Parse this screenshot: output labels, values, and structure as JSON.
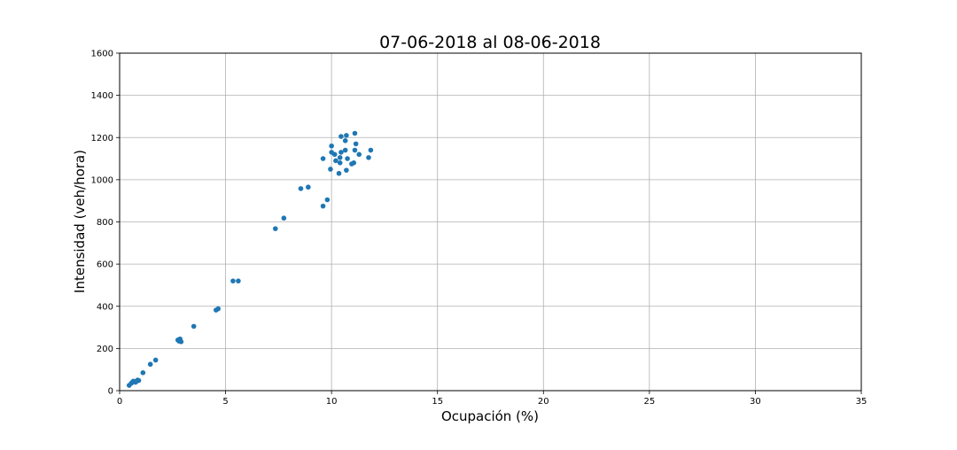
{
  "chart_data": {
    "type": "scatter",
    "title": "07-06-2018 al 08-06-2018",
    "xlabel": "Ocupación (%)",
    "ylabel": "Intensidad (veh/hora)",
    "xlim": [
      0,
      35
    ],
    "ylim": [
      0,
      1600
    ],
    "xticks": [
      "0",
      "5",
      "10",
      "15",
      "20",
      "25",
      "30",
      "35"
    ],
    "yticks": [
      "0",
      "200",
      "400",
      "600",
      "800",
      "1000",
      "1200",
      "1400",
      "1600"
    ],
    "grid": true,
    "legend": "none",
    "marker_color": "#1f77b4",
    "points": [
      {
        "x": 0.45,
        "y": 25
      },
      {
        "x": 0.55,
        "y": 35
      },
      {
        "x": 0.6,
        "y": 40
      },
      {
        "x": 0.65,
        "y": 45
      },
      {
        "x": 0.75,
        "y": 40
      },
      {
        "x": 0.8,
        "y": 45
      },
      {
        "x": 0.85,
        "y": 50
      },
      {
        "x": 0.9,
        "y": 48
      },
      {
        "x": 1.1,
        "y": 85
      },
      {
        "x": 1.45,
        "y": 125
      },
      {
        "x": 1.7,
        "y": 145
      },
      {
        "x": 2.75,
        "y": 240
      },
      {
        "x": 2.8,
        "y": 235
      },
      {
        "x": 2.85,
        "y": 245
      },
      {
        "x": 2.9,
        "y": 232
      },
      {
        "x": 3.5,
        "y": 305
      },
      {
        "x": 4.55,
        "y": 382
      },
      {
        "x": 4.65,
        "y": 388
      },
      {
        "x": 5.35,
        "y": 520
      },
      {
        "x": 5.6,
        "y": 520
      },
      {
        "x": 7.35,
        "y": 768
      },
      {
        "x": 7.75,
        "y": 818
      },
      {
        "x": 8.55,
        "y": 958
      },
      {
        "x": 8.9,
        "y": 965
      },
      {
        "x": 9.6,
        "y": 875
      },
      {
        "x": 9.6,
        "y": 1100
      },
      {
        "x": 9.8,
        "y": 905
      },
      {
        "x": 9.95,
        "y": 1050
      },
      {
        "x": 10.0,
        "y": 1130
      },
      {
        "x": 10.0,
        "y": 1160
      },
      {
        "x": 10.15,
        "y": 1120
      },
      {
        "x": 10.2,
        "y": 1090
      },
      {
        "x": 10.35,
        "y": 1030
      },
      {
        "x": 10.4,
        "y": 1080
      },
      {
        "x": 10.4,
        "y": 1105
      },
      {
        "x": 10.45,
        "y": 1130
      },
      {
        "x": 10.45,
        "y": 1205
      },
      {
        "x": 10.65,
        "y": 1185
      },
      {
        "x": 10.65,
        "y": 1140
      },
      {
        "x": 10.7,
        "y": 1210
      },
      {
        "x": 10.7,
        "y": 1045
      },
      {
        "x": 10.75,
        "y": 1100
      },
      {
        "x": 10.95,
        "y": 1075
      },
      {
        "x": 11.05,
        "y": 1080
      },
      {
        "x": 11.1,
        "y": 1220
      },
      {
        "x": 11.1,
        "y": 1140
      },
      {
        "x": 11.15,
        "y": 1170
      },
      {
        "x": 11.3,
        "y": 1120
      },
      {
        "x": 11.75,
        "y": 1105
      },
      {
        "x": 11.85,
        "y": 1140
      }
    ]
  }
}
